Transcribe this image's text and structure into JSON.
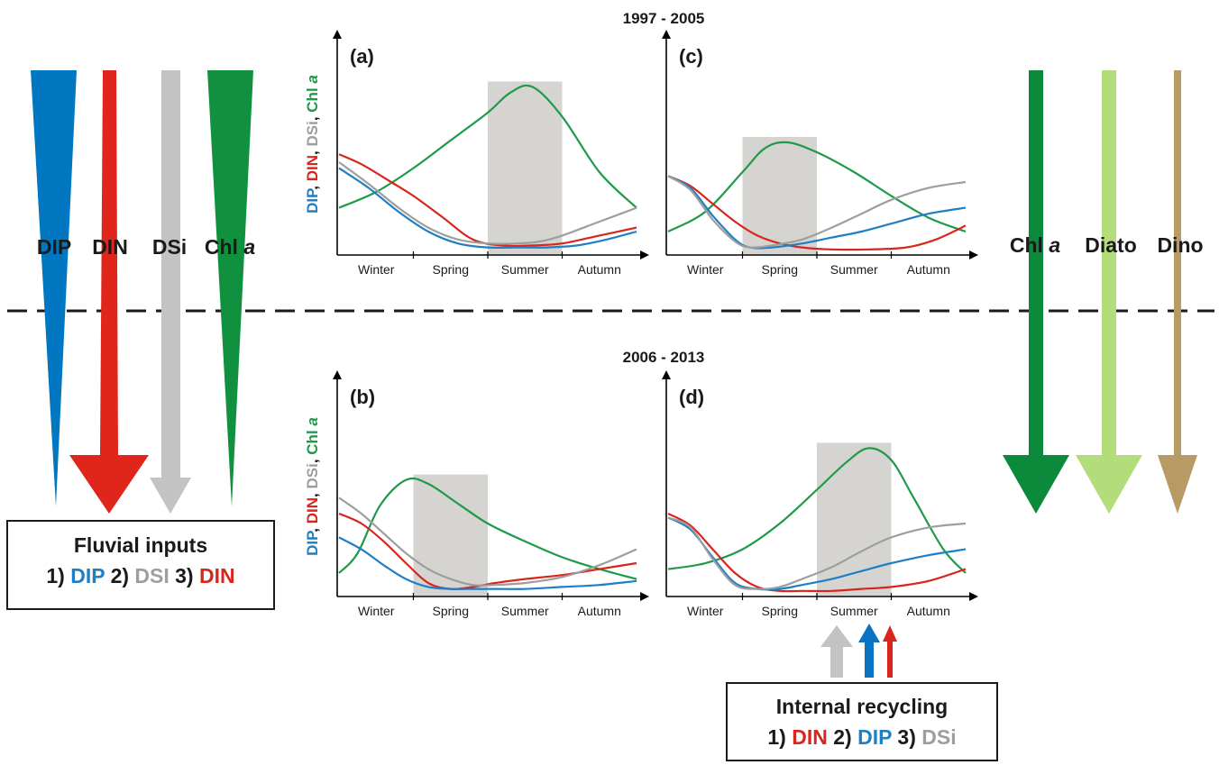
{
  "period_top": "1997 - 2005",
  "period_bottom": "2006 - 2013",
  "colors": {
    "DIP": "#1f7fc4",
    "DIN": "#d9261c",
    "DSi": "#9e9e9e",
    "Chl": "#1e9a4a",
    "Chl_arrow": "#0a8a3a",
    "Diato": "#b3dd7a",
    "Dino": "#b89a64",
    "season_box": "#d6d4d0"
  },
  "left_arrows": [
    {
      "label": "DIP",
      "color": "#0077c0",
      "shape": "narrowing"
    },
    {
      "label": "DIN",
      "color": "#e0251b",
      "shape": "widening"
    },
    {
      "label": "DSi",
      "color": "#c3c3c3",
      "shape": "uniform"
    },
    {
      "label": "Chl a",
      "label_main": "Chl ",
      "label_italic": "a",
      "color": "#11913f",
      "shape": "narrowing"
    }
  ],
  "right_arrows": [
    {
      "label": "Chl a",
      "label_main": "Chl ",
      "label_italic": "a",
      "color": "#0a8a3a"
    },
    {
      "label": "Diato",
      "color": "#b3dd7a"
    },
    {
      "label": "Dino",
      "color": "#b89a64"
    }
  ],
  "fluvial_box": {
    "title": "Fluvial inputs",
    "items": [
      {
        "rank": "1)",
        "name": "DIP",
        "color": "#1f7fc4"
      },
      {
        "rank": "2)",
        "name": "DSI",
        "color": "#9e9e9e"
      },
      {
        "rank": "3)",
        "name": "DIN",
        "color": "#d9261c"
      }
    ]
  },
  "recycling_box": {
    "title": "Internal recycling",
    "items": [
      {
        "rank": "1)",
        "name": "DIN",
        "color": "#d9261c"
      },
      {
        "rank": "2)",
        "name": "DIP",
        "color": "#1f7fc4"
      },
      {
        "rank": "3)",
        "name": "DSi",
        "color": "#9e9e9e"
      }
    ]
  },
  "recycling_arrows": [
    "DSi",
    "DIP",
    "DIN"
  ],
  "y_axis_label": [
    {
      "text": "DIP",
      "color": "#1f7fc4"
    },
    {
      "text": ", ",
      "color": "#1a1a1a"
    },
    {
      "text": "DIN",
      "color": "#d9261c"
    },
    {
      "text": ", ",
      "color": "#1a1a1a"
    },
    {
      "text": "DSi",
      "color": "#9e9e9e"
    },
    {
      "text": ", ",
      "color": "#1a1a1a"
    },
    {
      "text": "Chl ",
      "color": "#1e9a4a"
    },
    {
      "text": "a",
      "color": "#1e9a4a",
      "italic": true
    }
  ],
  "seasons": [
    "Winter",
    "Spring",
    "Summer",
    "Autumn"
  ],
  "chart_data": [
    {
      "type": "line",
      "title": "(a)",
      "period": "1997 - 2005",
      "x": [
        "Winter",
        "Spring",
        "Summer",
        "Autumn"
      ],
      "shaded_season": "Summer",
      "series": [
        {
          "name": "Chl a",
          "color": "#1e9a4a",
          "x": [
            0.0,
            0.5,
            1.0,
            1.5,
            2.0,
            2.3,
            2.6,
            3.0,
            3.5,
            4.0
          ],
          "y": [
            0.22,
            0.3,
            0.42,
            0.56,
            0.7,
            0.8,
            0.83,
            0.68,
            0.4,
            0.22
          ]
        },
        {
          "name": "DIN",
          "color": "#d9261c",
          "x": [
            0.0,
            0.3,
            0.7,
            1.0,
            1.4,
            1.8,
            2.2,
            2.6,
            3.0,
            3.5,
            4.0
          ],
          "y": [
            0.49,
            0.44,
            0.35,
            0.28,
            0.17,
            0.06,
            0.03,
            0.03,
            0.04,
            0.08,
            0.12
          ]
        },
        {
          "name": "DIP",
          "color": "#1f7fc4",
          "x": [
            0.0,
            0.4,
            0.8,
            1.2,
            1.6,
            2.0,
            2.4,
            2.8,
            3.2,
            3.6,
            4.0
          ],
          "y": [
            0.42,
            0.32,
            0.2,
            0.1,
            0.04,
            0.02,
            0.02,
            0.02,
            0.03,
            0.06,
            0.1
          ]
        },
        {
          "name": "DSi",
          "color": "#9e9e9e",
          "x": [
            0.0,
            0.4,
            0.8,
            1.2,
            1.6,
            2.0,
            2.4,
            2.7,
            3.0,
            3.5,
            4.0
          ],
          "y": [
            0.45,
            0.34,
            0.22,
            0.12,
            0.06,
            0.04,
            0.04,
            0.05,
            0.08,
            0.15,
            0.22
          ]
        }
      ]
    },
    {
      "type": "line",
      "title": "(c)",
      "period": "1997 - 2005",
      "x": [
        "Winter",
        "Spring",
        "Summer",
        "Autumn"
      ],
      "shaded_season": "Spring",
      "series": [
        {
          "name": "Chl a",
          "color": "#1e9a4a",
          "x": [
            0.0,
            0.5,
            1.0,
            1.3,
            1.6,
            2.0,
            2.5,
            3.0,
            3.5,
            4.0
          ],
          "y": [
            0.1,
            0.2,
            0.4,
            0.52,
            0.55,
            0.5,
            0.4,
            0.28,
            0.17,
            0.1
          ]
        },
        {
          "name": "DIN",
          "color": "#d9261c",
          "x": [
            0.0,
            0.3,
            0.6,
            0.9,
            1.2,
            1.5,
            1.8,
            2.2,
            2.7,
            3.2,
            3.6,
            4.0
          ],
          "y": [
            0.38,
            0.33,
            0.24,
            0.15,
            0.08,
            0.04,
            0.02,
            0.01,
            0.01,
            0.02,
            0.06,
            0.13
          ]
        },
        {
          "name": "DIP",
          "color": "#1f7fc4",
          "x": [
            0.0,
            0.3,
            0.6,
            0.9,
            1.1,
            1.4,
            1.8,
            2.2,
            2.6,
            3.0,
            3.5,
            4.0
          ],
          "y": [
            0.38,
            0.32,
            0.18,
            0.06,
            0.02,
            0.02,
            0.04,
            0.07,
            0.1,
            0.14,
            0.19,
            0.22
          ]
        },
        {
          "name": "DSi",
          "color": "#9e9e9e",
          "x": [
            0.0,
            0.3,
            0.6,
            0.9,
            1.1,
            1.4,
            1.8,
            2.2,
            2.6,
            3.0,
            3.5,
            4.0
          ],
          "y": [
            0.38,
            0.31,
            0.16,
            0.05,
            0.02,
            0.03,
            0.06,
            0.12,
            0.19,
            0.26,
            0.32,
            0.35
          ]
        }
      ]
    },
    {
      "type": "line",
      "title": "(b)",
      "period": "2006 - 2013",
      "x": [
        "Winter",
        "Spring",
        "Summer",
        "Autumn"
      ],
      "shaded_season": "Spring",
      "series": [
        {
          "name": "Chl a",
          "color": "#1e9a4a",
          "x": [
            0.0,
            0.25,
            0.55,
            0.9,
            1.2,
            1.6,
            2.0,
            2.5,
            3.0,
            3.5,
            4.0
          ],
          "y": [
            0.1,
            0.2,
            0.44,
            0.57,
            0.55,
            0.45,
            0.35,
            0.26,
            0.18,
            0.12,
            0.07
          ]
        },
        {
          "name": "DIN",
          "color": "#d9261c",
          "x": [
            0.0,
            0.3,
            0.6,
            0.9,
            1.2,
            1.5,
            1.8,
            2.1,
            2.5,
            3.0,
            3.5,
            4.0
          ],
          "y": [
            0.4,
            0.35,
            0.26,
            0.15,
            0.05,
            0.02,
            0.03,
            0.05,
            0.07,
            0.09,
            0.12,
            0.15
          ]
        },
        {
          "name": "DIP",
          "color": "#1f7fc4",
          "x": [
            0.0,
            0.3,
            0.6,
            0.9,
            1.2,
            1.5,
            1.8,
            2.1,
            2.5,
            3.0,
            3.5,
            4.0
          ],
          "y": [
            0.28,
            0.22,
            0.14,
            0.07,
            0.03,
            0.02,
            0.02,
            0.02,
            0.02,
            0.03,
            0.04,
            0.06
          ]
        },
        {
          "name": "DSi",
          "color": "#9e9e9e",
          "x": [
            0.0,
            0.3,
            0.6,
            0.9,
            1.2,
            1.5,
            1.8,
            2.1,
            2.5,
            3.0,
            3.5,
            4.0
          ],
          "y": [
            0.48,
            0.4,
            0.3,
            0.2,
            0.12,
            0.07,
            0.04,
            0.04,
            0.05,
            0.08,
            0.14,
            0.22
          ]
        }
      ]
    },
    {
      "type": "line",
      "title": "(d)",
      "period": "2006 - 2013",
      "x": [
        "Winter",
        "Spring",
        "Summer",
        "Autumn"
      ],
      "shaded_season": "Summer",
      "series": [
        {
          "name": "Chl a",
          "color": "#1e9a4a",
          "x": [
            0.0,
            0.5,
            1.0,
            1.5,
            2.0,
            2.4,
            2.7,
            3.0,
            3.3,
            3.7,
            4.0
          ],
          "y": [
            0.12,
            0.15,
            0.22,
            0.35,
            0.52,
            0.66,
            0.73,
            0.67,
            0.48,
            0.22,
            0.1
          ]
        },
        {
          "name": "DIN",
          "color": "#d9261c",
          "x": [
            0.0,
            0.3,
            0.6,
            0.9,
            1.2,
            1.5,
            1.8,
            2.2,
            2.6,
            3.0,
            3.5,
            4.0
          ],
          "y": [
            0.4,
            0.34,
            0.22,
            0.1,
            0.03,
            0.01,
            0.01,
            0.01,
            0.02,
            0.03,
            0.06,
            0.12
          ]
        },
        {
          "name": "DIP",
          "color": "#1f7fc4",
          "x": [
            0.0,
            0.3,
            0.6,
            0.9,
            1.2,
            1.5,
            1.8,
            2.2,
            2.6,
            3.0,
            3.5,
            4.0
          ],
          "y": [
            0.38,
            0.32,
            0.18,
            0.05,
            0.02,
            0.02,
            0.04,
            0.07,
            0.11,
            0.15,
            0.19,
            0.22
          ]
        },
        {
          "name": "DSi",
          "color": "#9e9e9e",
          "x": [
            0.0,
            0.3,
            0.6,
            0.9,
            1.2,
            1.5,
            1.8,
            2.2,
            2.6,
            3.0,
            3.5,
            4.0
          ],
          "y": [
            0.38,
            0.33,
            0.17,
            0.04,
            0.02,
            0.03,
            0.07,
            0.13,
            0.21,
            0.28,
            0.33,
            0.35
          ]
        }
      ]
    }
  ]
}
